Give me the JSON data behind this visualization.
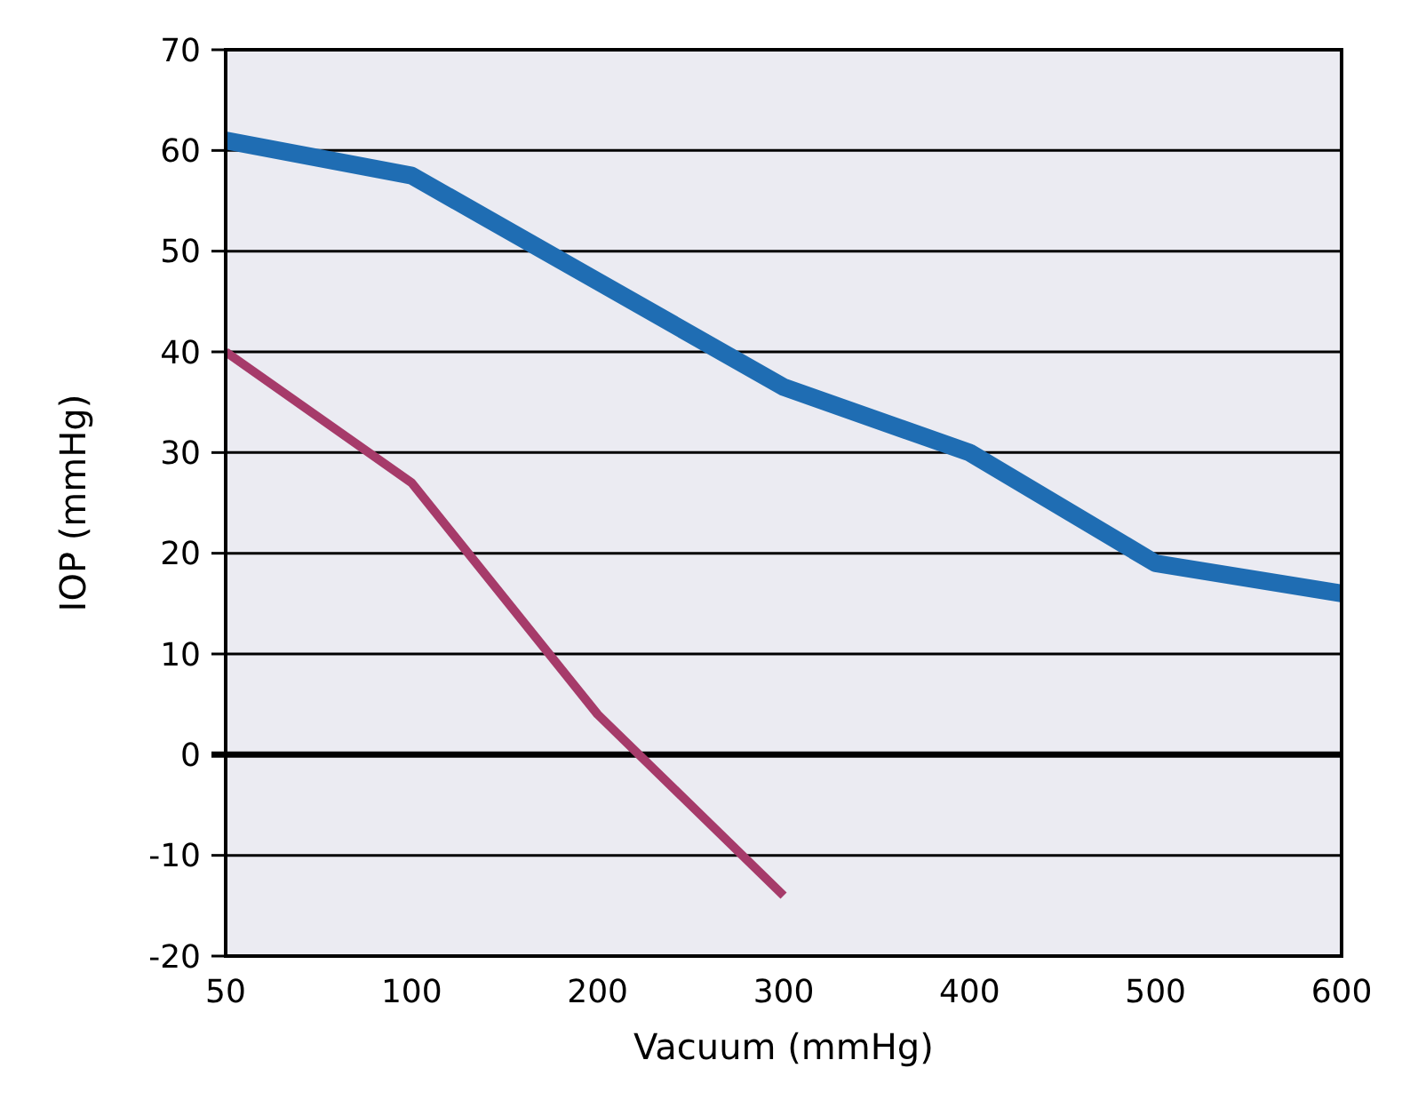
{
  "chart_data": {
    "type": "line",
    "xlabel": "Vacuum (mmHg)",
    "ylabel": "IOP (mmHg)",
    "categories": [
      "50",
      "100",
      "200",
      "300",
      "400",
      "500",
      "600"
    ],
    "series": [
      {
        "color": "#1f6db3",
        "values": [
          61,
          57.5,
          47,
          36.5,
          30,
          19,
          16
        ]
      },
      {
        "color": "#a63b6a",
        "values": [
          40,
          27,
          4,
          -14,
          null,
          null,
          null
        ]
      }
    ],
    "ylim": [
      -20,
      70
    ],
    "yticks": [
      -20,
      -10,
      0,
      10,
      20,
      30,
      40,
      50,
      60,
      70
    ],
    "grid": "y",
    "ref_lines": [
      {
        "axis": "y",
        "value": 0
      }
    ],
    "marker": "none",
    "line_style": "solid"
  }
}
